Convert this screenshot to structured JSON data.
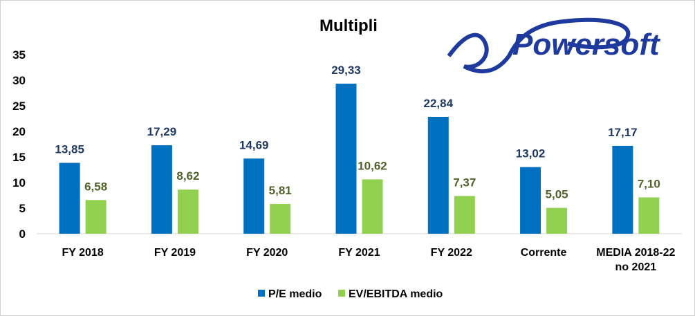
{
  "chart_data": {
    "type": "bar",
    "title": "Multipli",
    "categories": [
      "FY 2018",
      "FY 2019",
      "FY 2020",
      "FY 2021",
      "FY 2022",
      "Corrente",
      "MEDIA 2018-22|no 2021"
    ],
    "series": [
      {
        "name": "P/E medio",
        "color": "#0070C0",
        "label_color": "#1F3864",
        "values": [
          13.85,
          17.29,
          14.69,
          29.33,
          22.84,
          13.02,
          17.17
        ],
        "labels": [
          "13,85",
          "17,29",
          "14,69",
          "29,33",
          "22,84",
          "13,02",
          "17,17"
        ]
      },
      {
        "name": "EV/EBITDA medio",
        "color": "#92D050",
        "label_color": "#4F6228",
        "values": [
          6.58,
          8.62,
          5.81,
          10.62,
          7.37,
          5.05,
          7.1
        ],
        "labels": [
          "6,58",
          "8,62",
          "5,81",
          "10,62",
          "7,37",
          "5,05",
          "7,10"
        ]
      }
    ],
    "ylim": [
      0,
      35
    ],
    "yticks": [
      "0",
      "5",
      "10",
      "15",
      "20",
      "25",
      "30",
      "35"
    ],
    "grid": false,
    "legend": "bottom",
    "xlabel": "",
    "ylabel": ""
  },
  "logo": {
    "text": "Powersoft",
    "color": "#1F3A9E"
  }
}
